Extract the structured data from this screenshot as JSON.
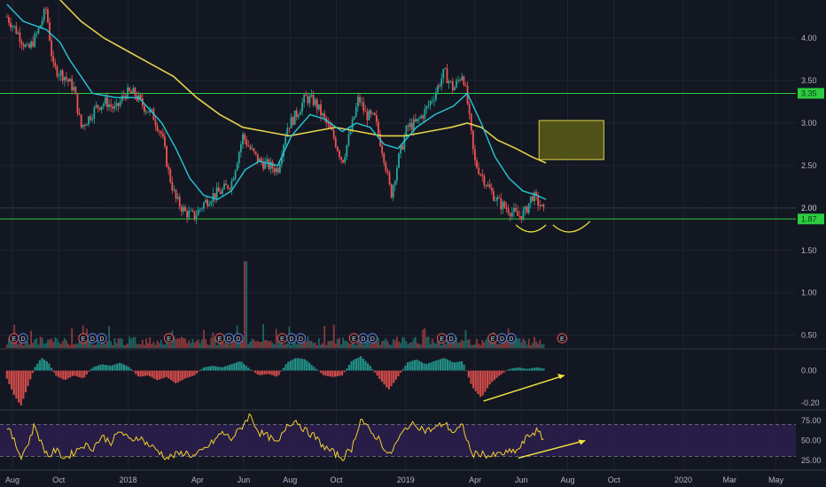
{
  "chart_data": {
    "type": "candlestick",
    "colors": {
      "background": "#131722",
      "grid": "#1f2433",
      "axis_text": "#b2b5be",
      "up": "#26a69a",
      "down": "#ef5350",
      "ma_fast": "#26c6da",
      "ma_slow": "#e3d34a",
      "support_line": "#2ecc40",
      "annotation": "#f5e63c",
      "target_box": "#5c5a17",
      "target_box_border": "#d8d24a",
      "rsi_band": "#2a1e4a",
      "rsi_line": "#f2d12d",
      "macd_up": "#26a69a",
      "macd_down": "#ef5350"
    },
    "x_axis": {
      "ticks": [
        {
          "label": "Aug",
          "t": 0
        },
        {
          "label": "Oct",
          "t": 2
        },
        {
          "label": "2018",
          "t": 5
        },
        {
          "label": "Apr",
          "t": 8
        },
        {
          "label": "Jun",
          "t": 10
        },
        {
          "label": "Aug",
          "t": 12
        },
        {
          "label": "Oct",
          "t": 14
        },
        {
          "label": "2019",
          "t": 17
        },
        {
          "label": "Apr",
          "t": 20
        },
        {
          "label": "Jun",
          "t": 22
        },
        {
          "label": "Aug",
          "t": 24
        },
        {
          "label": "Oct",
          "t": 26
        },
        {
          "label": "2020",
          "t": 29
        },
        {
          "label": "Mar",
          "t": 31
        },
        {
          "label": "May",
          "t": 33
        }
      ]
    },
    "price_pane": {
      "ylim": [
        0.35,
        4.45
      ],
      "ticks": [
        "4.00",
        "3.50",
        "3.00",
        "2.50",
        "2.00",
        "1.50",
        "1.00",
        "0.50"
      ],
      "price_labels": [
        {
          "value": 3.35,
          "text": "3.35",
          "bg": "#2ecc40"
        },
        {
          "value": 2.0,
          "text": "2.00",
          "bg": "#131722"
        },
        {
          "value": 1.87,
          "text": "1.87",
          "bg": "#2ecc40"
        }
      ],
      "support_lines": [
        3.35,
        1.87
      ],
      "dotted_line": 2.0,
      "target_box": {
        "t0": 23.3,
        "t1": 26.1,
        "y0": 2.57,
        "y1": 3.03
      },
      "price_points": [
        [
          0.3,
          4.25
        ],
        [
          0.8,
          4.05
        ],
        [
          1.2,
          3.85
        ],
        [
          1.6,
          4.05
        ],
        [
          2.0,
          4.35
        ],
        [
          2.3,
          3.65
        ],
        [
          2.8,
          3.55
        ],
        [
          3.2,
          3.4
        ],
        [
          3.5,
          2.95
        ],
        [
          3.8,
          3.05
        ],
        [
          4.2,
          3.2
        ],
        [
          4.6,
          3.25
        ],
        [
          5.0,
          3.15
        ],
        [
          5.4,
          3.35
        ],
        [
          5.8,
          3.35
        ],
        [
          6.2,
          3.2
        ],
        [
          6.6,
          3.1
        ],
        [
          7.0,
          2.85
        ],
        [
          7.3,
          2.4
        ],
        [
          7.6,
          2.1
        ],
        [
          8.0,
          1.95
        ],
        [
          8.4,
          1.9
        ],
        [
          8.8,
          2.05
        ],
        [
          9.2,
          2.15
        ],
        [
          9.6,
          2.2
        ],
        [
          10.0,
          2.3
        ],
        [
          10.5,
          2.85
        ],
        [
          10.8,
          2.7
        ],
        [
          11.2,
          2.55
        ],
        [
          11.6,
          2.5
        ],
        [
          12.0,
          2.45
        ],
        [
          12.4,
          2.95
        ],
        [
          12.8,
          3.1
        ],
        [
          13.2,
          3.3
        ],
        [
          13.6,
          3.25
        ],
        [
          14.0,
          3.05
        ],
        [
          14.4,
          2.85
        ],
        [
          14.8,
          2.55
        ],
        [
          15.2,
          2.95
        ],
        [
          15.5,
          3.3
        ],
        [
          15.8,
          3.1
        ],
        [
          16.2,
          3.05
        ],
        [
          16.6,
          2.6
        ],
        [
          16.9,
          2.15
        ],
        [
          17.2,
          2.55
        ],
        [
          17.6,
          2.95
        ],
        [
          18.0,
          3.0
        ],
        [
          18.4,
          3.15
        ],
        [
          18.8,
          3.35
        ],
        [
          19.2,
          3.6
        ],
        [
          19.6,
          3.4
        ],
        [
          20.0,
          3.6
        ],
        [
          20.2,
          3.25
        ],
        [
          20.5,
          2.55
        ],
        [
          20.8,
          2.4
        ],
        [
          21.2,
          2.2
        ],
        [
          21.6,
          2.05
        ],
        [
          22.0,
          1.98
        ],
        [
          22.4,
          1.9
        ],
        [
          22.7,
          1.95
        ],
        [
          23.0,
          2.15
        ],
        [
          23.3,
          2.05
        ],
        [
          23.5,
          1.95
        ]
      ],
      "ma_fast": [
        [
          0.3,
          4.4
        ],
        [
          1.0,
          4.2
        ],
        [
          2.0,
          4.1
        ],
        [
          2.6,
          3.95
        ],
        [
          3.0,
          3.75
        ],
        [
          3.5,
          3.55
        ],
        [
          4.0,
          3.35
        ],
        [
          5.0,
          3.3
        ],
        [
          6.0,
          3.3
        ],
        [
          7.0,
          3.0
        ],
        [
          7.6,
          2.7
        ],
        [
          8.2,
          2.35
        ],
        [
          8.8,
          2.15
        ],
        [
          9.4,
          2.1
        ],
        [
          10.0,
          2.2
        ],
        [
          10.6,
          2.45
        ],
        [
          11.2,
          2.55
        ],
        [
          12.0,
          2.5
        ],
        [
          12.6,
          2.85
        ],
        [
          13.4,
          3.1
        ],
        [
          14.0,
          3.05
        ],
        [
          14.8,
          2.9
        ],
        [
          15.4,
          3.0
        ],
        [
          16.0,
          2.95
        ],
        [
          16.6,
          2.75
        ],
        [
          17.2,
          2.7
        ],
        [
          18.0,
          2.95
        ],
        [
          18.8,
          3.1
        ],
        [
          19.6,
          3.2
        ],
        [
          20.2,
          3.35
        ],
        [
          20.8,
          3.0
        ],
        [
          21.4,
          2.6
        ],
        [
          22.0,
          2.35
        ],
        [
          22.6,
          2.2
        ],
        [
          23.2,
          2.15
        ],
        [
          23.6,
          2.1
        ]
      ],
      "ma_slow": [
        [
          2.6,
          4.45
        ],
        [
          3.5,
          4.2
        ],
        [
          4.5,
          4.0
        ],
        [
          5.5,
          3.85
        ],
        [
          6.5,
          3.7
        ],
        [
          7.5,
          3.55
        ],
        [
          8.5,
          3.3
        ],
        [
          9.5,
          3.1
        ],
        [
          10.5,
          2.95
        ],
        [
          11.5,
          2.9
        ],
        [
          12.5,
          2.85
        ],
        [
          13.5,
          2.9
        ],
        [
          14.5,
          2.95
        ],
        [
          15.5,
          2.9
        ],
        [
          16.5,
          2.85
        ],
        [
          17.5,
          2.85
        ],
        [
          18.5,
          2.9
        ],
        [
          19.5,
          2.95
        ],
        [
          20.2,
          3.0
        ],
        [
          20.8,
          2.95
        ],
        [
          21.5,
          2.8
        ],
        [
          22.3,
          2.7
        ],
        [
          23.0,
          2.6
        ],
        [
          23.6,
          2.53
        ]
      ],
      "earnings_markers": [
        {
          "t": 0.6,
          "text": "E",
          "kind": "E"
        },
        {
          "t": 1.0,
          "text": "D",
          "kind": "D"
        },
        {
          "t": 3.6,
          "text": "E",
          "kind": "E"
        },
        {
          "t": 4.0,
          "text": "D",
          "kind": "D"
        },
        {
          "t": 4.4,
          "text": "D",
          "kind": "D"
        },
        {
          "t": 7.3,
          "text": "E",
          "kind": "E"
        },
        {
          "t": 9.5,
          "text": "E",
          "kind": "E"
        },
        {
          "t": 9.9,
          "text": "D",
          "kind": "D"
        },
        {
          "t": 10.3,
          "text": "D",
          "kind": "D"
        },
        {
          "t": 12.2,
          "text": "E",
          "kind": "E"
        },
        {
          "t": 12.6,
          "text": "D",
          "kind": "D"
        },
        {
          "t": 13.0,
          "text": "D",
          "kind": "D"
        },
        {
          "t": 15.3,
          "text": "E",
          "kind": "E"
        },
        {
          "t": 15.7,
          "text": "D",
          "kind": "D"
        },
        {
          "t": 16.1,
          "text": "D",
          "kind": "D"
        },
        {
          "t": 19.1,
          "text": "E",
          "kind": "E"
        },
        {
          "t": 19.5,
          "text": "D",
          "kind": "D"
        },
        {
          "t": 21.3,
          "text": "E",
          "kind": "E"
        },
        {
          "t": 21.7,
          "text": "D",
          "kind": "D"
        },
        {
          "t": 22.1,
          "text": "D",
          "kind": "D"
        },
        {
          "t": 24.3,
          "text": "E",
          "kind": "E"
        }
      ]
    },
    "macd_pane": {
      "ylim": [
        -0.24,
        0.13
      ],
      "ticks": [
        "0.00",
        "-0.20"
      ],
      "hist_points": [
        [
          0.3,
          -0.05
        ],
        [
          0.6,
          -0.15
        ],
        [
          0.9,
          -0.22
        ],
        [
          1.2,
          -0.1
        ],
        [
          1.5,
          0.02
        ],
        [
          1.8,
          0.08
        ],
        [
          2.1,
          0.05
        ],
        [
          2.4,
          -0.03
        ],
        [
          2.8,
          -0.06
        ],
        [
          3.2,
          -0.03
        ],
        [
          3.6,
          -0.05
        ],
        [
          4.0,
          0.02
        ],
        [
          4.4,
          0.04
        ],
        [
          4.8,
          0.03
        ],
        [
          5.2,
          0.05
        ],
        [
          5.6,
          0.02
        ],
        [
          6.0,
          -0.04
        ],
        [
          6.4,
          -0.03
        ],
        [
          6.8,
          -0.06
        ],
        [
          7.2,
          -0.04
        ],
        [
          7.6,
          -0.08
        ],
        [
          8.0,
          -0.05
        ],
        [
          8.4,
          -0.03
        ],
        [
          8.8,
          0.02
        ],
        [
          9.2,
          0.03
        ],
        [
          9.6,
          0.02
        ],
        [
          10.0,
          0.04
        ],
        [
          10.4,
          0.06
        ],
        [
          10.8,
          0.01
        ],
        [
          11.2,
          -0.03
        ],
        [
          11.6,
          -0.02
        ],
        [
          12.0,
          -0.04
        ],
        [
          12.4,
          0.05
        ],
        [
          12.8,
          0.08
        ],
        [
          13.2,
          0.07
        ],
        [
          13.6,
          0.02
        ],
        [
          14.0,
          -0.03
        ],
        [
          14.4,
          -0.04
        ],
        [
          14.8,
          -0.03
        ],
        [
          15.2,
          0.06
        ],
        [
          15.6,
          0.09
        ],
        [
          16.0,
          0.03
        ],
        [
          16.4,
          -0.05
        ],
        [
          16.8,
          -0.12
        ],
        [
          17.2,
          -0.04
        ],
        [
          17.6,
          0.05
        ],
        [
          18.0,
          0.07
        ],
        [
          18.4,
          0.04
        ],
        [
          18.8,
          0.06
        ],
        [
          19.2,
          0.08
        ],
        [
          19.6,
          0.05
        ],
        [
          20.0,
          0.06
        ],
        [
          20.4,
          -0.1
        ],
        [
          20.8,
          -0.17
        ],
        [
          21.2,
          -0.08
        ],
        [
          21.6,
          -0.03
        ],
        [
          22.0,
          0.01
        ],
        [
          22.4,
          0.02
        ],
        [
          22.8,
          0.01
        ],
        [
          23.2,
          0.02
        ],
        [
          23.6,
          0.01
        ]
      ],
      "arrow": {
        "t0": 20.9,
        "y0": -0.19,
        "t1": 24.4,
        "y1": -0.03
      }
    },
    "rsi_pane": {
      "ylim": [
        14,
        87
      ],
      "ticks": [
        "75.00",
        "50.00",
        "25.00"
      ],
      "band": [
        30,
        70
      ],
      "rsi_points": [
        [
          0.3,
          68
        ],
        [
          0.6,
          50
        ],
        [
          0.9,
          30
        ],
        [
          1.2,
          45
        ],
        [
          1.5,
          70
        ],
        [
          1.8,
          45
        ],
        [
          2.1,
          30
        ],
        [
          2.4,
          38
        ],
        [
          2.8,
          28
        ],
        [
          3.2,
          35
        ],
        [
          3.6,
          45
        ],
        [
          4.0,
          40
        ],
        [
          4.4,
          55
        ],
        [
          4.8,
          48
        ],
        [
          5.2,
          62
        ],
        [
          5.6,
          50
        ],
        [
          6.0,
          55
        ],
        [
          6.4,
          45
        ],
        [
          6.8,
          38
        ],
        [
          7.2,
          28
        ],
        [
          7.6,
          32
        ],
        [
          8.0,
          35
        ],
        [
          8.4,
          30
        ],
        [
          8.8,
          38
        ],
        [
          9.2,
          48
        ],
        [
          9.6,
          60
        ],
        [
          10.0,
          52
        ],
        [
          10.4,
          65
        ],
        [
          10.8,
          82
        ],
        [
          11.2,
          60
        ],
        [
          11.6,
          55
        ],
        [
          12.0,
          45
        ],
        [
          12.4,
          70
        ],
        [
          12.8,
          75
        ],
        [
          13.2,
          62
        ],
        [
          13.6,
          55
        ],
        [
          14.0,
          42
        ],
        [
          14.4,
          35
        ],
        [
          14.8,
          28
        ],
        [
          15.2,
          40
        ],
        [
          15.6,
          78
        ],
        [
          16.0,
          60
        ],
        [
          16.4,
          52
        ],
        [
          16.8,
          30
        ],
        [
          17.2,
          50
        ],
        [
          17.6,
          68
        ],
        [
          18.0,
          70
        ],
        [
          18.4,
          62
        ],
        [
          18.8,
          65
        ],
        [
          19.2,
          72
        ],
        [
          19.6,
          60
        ],
        [
          20.0,
          68
        ],
        [
          20.4,
          32
        ],
        [
          20.8,
          34
        ],
        [
          21.2,
          30
        ],
        [
          21.6,
          33
        ],
        [
          22.0,
          35
        ],
        [
          22.4,
          38
        ],
        [
          22.8,
          55
        ],
        [
          23.2,
          62
        ],
        [
          23.6,
          48
        ]
      ],
      "arrow": {
        "t0": 22.4,
        "y0": 28,
        "t1": 25.3,
        "y1": 50
      }
    }
  }
}
